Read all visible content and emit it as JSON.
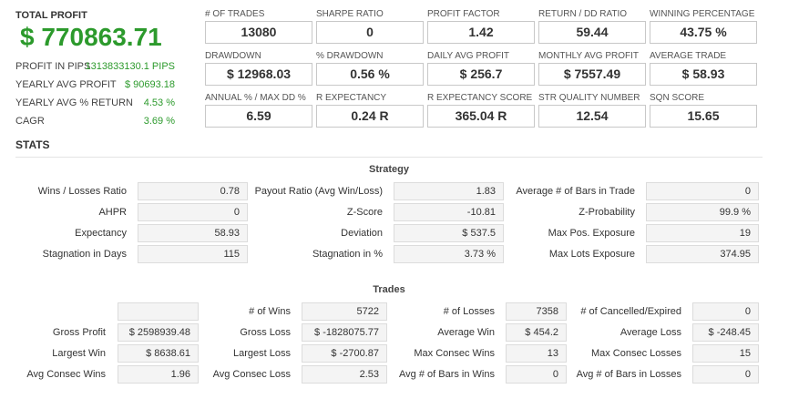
{
  "summary": {
    "title": "TOTAL PROFIT",
    "value": "$ 770863.71",
    "items": [
      {
        "label": "PROFIT IN PIPS",
        "value": "1313833130.1 PIPS"
      },
      {
        "label": "YEARLY AVG PROFIT",
        "value": "$ 90693.18"
      },
      {
        "label": "YEARLY AVG % RETURN",
        "value": "4.53 %"
      },
      {
        "label": "CAGR",
        "value": "3.69 %"
      }
    ]
  },
  "metrics": [
    {
      "label": "# OF TRADES",
      "value": "13080"
    },
    {
      "label": "SHARPE RATIO",
      "value": "0"
    },
    {
      "label": "PROFIT FACTOR",
      "value": "1.42"
    },
    {
      "label": "RETURN / DD RATIO",
      "value": "59.44"
    },
    {
      "label": "WINNING PERCENTAGE",
      "value": "43.75 %"
    },
    {
      "label": "DRAWDOWN",
      "value": "$ 12968.03"
    },
    {
      "label": "% DRAWDOWN",
      "value": "0.56 %"
    },
    {
      "label": "DAILY AVG PROFIT",
      "value": "$ 256.7"
    },
    {
      "label": "MONTHLY AVG PROFIT",
      "value": "$ 7557.49"
    },
    {
      "label": "AVERAGE TRADE",
      "value": "$ 58.93"
    },
    {
      "label": "ANNUAL % / MAX DD %",
      "value": "6.59"
    },
    {
      "label": "R EXPECTANCY",
      "value": "0.24 R"
    },
    {
      "label": "R EXPECTANCY SCORE",
      "value": "365.04 R"
    },
    {
      "label": "STR QUALITY NUMBER",
      "value": "12.54"
    },
    {
      "label": "SQN SCORE",
      "value": "15.65"
    }
  ],
  "stats_title": "STATS",
  "strategy": {
    "title": "Strategy",
    "rows": [
      [
        {
          "label": "Wins / Losses Ratio",
          "value": "0.78"
        },
        {
          "label": "Payout Ratio (Avg Win/Loss)",
          "value": "1.83"
        },
        {
          "label": "Average # of Bars in Trade",
          "value": "0"
        }
      ],
      [
        {
          "label": "AHPR",
          "value": "0"
        },
        {
          "label": "Z-Score",
          "value": "-10.81"
        },
        {
          "label": "Z-Probability",
          "value": "99.9 %"
        }
      ],
      [
        {
          "label": "Expectancy",
          "value": "58.93"
        },
        {
          "label": "Deviation",
          "value": "$ 537.5"
        },
        {
          "label": "Max Pos. Exposure",
          "value": "19"
        }
      ],
      [
        {
          "label": "Stagnation in Days",
          "value": "115"
        },
        {
          "label": "Stagnation in %",
          "value": "3.73 %"
        },
        {
          "label": "Max Lots Exposure",
          "value": "374.95"
        }
      ]
    ]
  },
  "trades": {
    "title": "Trades",
    "rows": [
      [
        {
          "label": "# of Wins",
          "value": "5722"
        },
        {
          "label": "# of Losses",
          "value": "7358"
        },
        {
          "label": "# of Cancelled/Expired",
          "value": "0"
        }
      ],
      [
        {
          "label": "Gross Profit",
          "value": "$ 2598939.48"
        },
        {
          "label": "Gross Loss",
          "value": "$ -1828075.77"
        },
        {
          "label": "Average Win",
          "value": "$ 454.2"
        },
        {
          "label": "Average Loss",
          "value": "$ -248.45"
        }
      ],
      [
        {
          "label": "Largest Win",
          "value": "$ 8638.61"
        },
        {
          "label": "Largest Loss",
          "value": "$ -2700.87"
        },
        {
          "label": "Max Consec Wins",
          "value": "13"
        },
        {
          "label": "Max Consec Losses",
          "value": "15"
        }
      ],
      [
        {
          "label": "Avg Consec Wins",
          "value": "1.96"
        },
        {
          "label": "Avg Consec Loss",
          "value": "2.53"
        },
        {
          "label": "Avg # of Bars in Wins",
          "value": "0"
        },
        {
          "label": "Avg # of Bars in Losses",
          "value": "0"
        }
      ]
    ]
  }
}
